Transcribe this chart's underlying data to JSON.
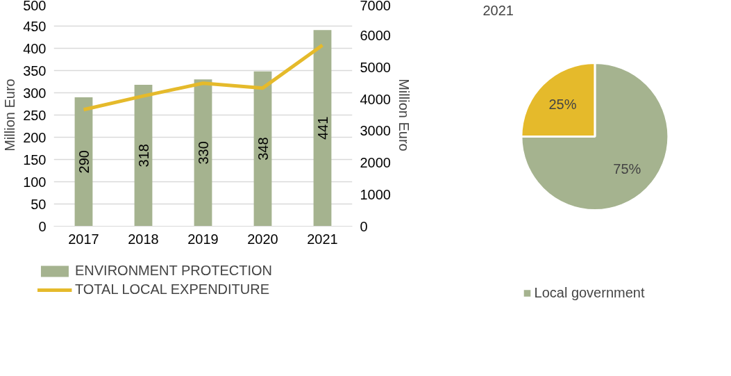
{
  "chart_data": [
    {
      "type": "bar",
      "categories": [
        "2017",
        "2018",
        "2019",
        "2020",
        "2021"
      ],
      "ylabel": "Million Euro",
      "y2label": "Million Euro",
      "ylim": [
        0,
        500
      ],
      "yticks": [
        0,
        50,
        100,
        150,
        200,
        250,
        300,
        350,
        400,
        450,
        500
      ],
      "y2lim": [
        0,
        7000
      ],
      "y2ticks": [
        0,
        1000,
        2000,
        3000,
        4000,
        5000,
        6000,
        7000
      ],
      "grid": "y",
      "legend": "bottom",
      "series": [
        {
          "name": "ENVIRONMENT PROTECTION",
          "type": "bar",
          "color": "#a5b38f",
          "values": [
            290,
            318,
            330,
            348,
            441
          ],
          "value_labels": [
            "290",
            "318",
            "330",
            "348",
            "441"
          ]
        },
        {
          "name": "TOTAL LOCAL EXPENDITURE",
          "type": "line",
          "axis": "y2",
          "color": "#e5ba2b",
          "values": [
            3670,
            4100,
            4500,
            4350,
            5700
          ]
        }
      ]
    },
    {
      "type": "pie",
      "title": "2021",
      "categories": [
        "Local government",
        null
      ],
      "values": [
        75,
        25
      ],
      "colors": [
        "#a5b38f",
        "#e5ba2b"
      ],
      "value_labels": [
        "75%",
        "25%"
      ],
      "legend": "bottom"
    }
  ]
}
